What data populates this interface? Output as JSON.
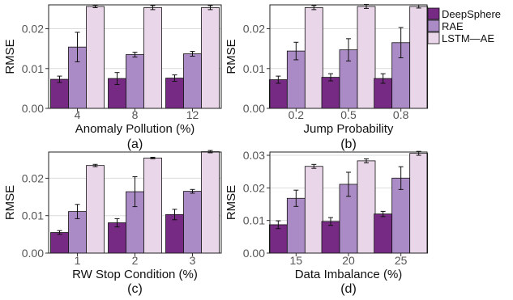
{
  "legend": {
    "entries": [
      {
        "name": "DeepSphere",
        "color": "#762a83"
      },
      {
        "name": "RAE",
        "color": "#ab8bc6"
      },
      {
        "name": "LSTM—AE",
        "color": "#e9d6e8"
      }
    ]
  },
  "chart_data": [
    {
      "type": "bar",
      "panel_label": "(a)",
      "xlabel": "Anomaly Pollution (%)",
      "ylabel": "RMSE",
      "categories": [
        "4",
        "8",
        "12"
      ],
      "ylim": [
        0,
        0.026
      ],
      "yticks": [
        "0.00",
        "0.01",
        "0.02"
      ],
      "ytick_values": [
        0,
        0.01,
        0.02
      ],
      "error_bars": true,
      "grid": true,
      "series": [
        {
          "name": "DeepSphere",
          "values": [
            0.0073,
            0.0075,
            0.0076
          ],
          "errors": [
            0.0008,
            0.0015,
            0.0008
          ]
        },
        {
          "name": "RAE",
          "values": [
            0.0154,
            0.0135,
            0.0137
          ],
          "errors": [
            0.0037,
            0.0006,
            0.0006
          ]
        },
        {
          "name": "LSTM—AE",
          "values": [
            0.0256,
            0.0253,
            0.0253
          ],
          "errors": [
            0.0003,
            0.0005,
            0.0005
          ]
        }
      ]
    },
    {
      "type": "bar",
      "panel_label": "(b)",
      "xlabel": "Jump Probability",
      "ylabel": "RMSE",
      "categories": [
        "0.2",
        "0.5",
        "0.8"
      ],
      "ylim": [
        0,
        0.026
      ],
      "yticks": [
        "0.00",
        "0.01",
        "0.02"
      ],
      "ytick_values": [
        0,
        0.01,
        0.02
      ],
      "error_bars": true,
      "grid": true,
      "series": [
        {
          "name": "DeepSphere",
          "values": [
            0.0072,
            0.0078,
            0.0075
          ],
          "errors": [
            0.0009,
            0.0009,
            0.0012
          ]
        },
        {
          "name": "RAE",
          "values": [
            0.0144,
            0.0147,
            0.0165
          ],
          "errors": [
            0.0022,
            0.0028,
            0.0038
          ]
        },
        {
          "name": "LSTM—AE",
          "values": [
            0.0253,
            0.0256,
            0.0256
          ],
          "errors": [
            0.0005,
            0.0005,
            0.0004
          ]
        }
      ]
    },
    {
      "type": "bar",
      "panel_label": "(c)",
      "xlabel": "RW Stop Condition (%)",
      "ylabel": "RMSE",
      "categories": [
        "1",
        "2",
        "3"
      ],
      "ylim": [
        0,
        0.027
      ],
      "yticks": [
        "0.00",
        "0.01",
        "0.02"
      ],
      "ytick_values": [
        0,
        0.01,
        0.02
      ],
      "error_bars": true,
      "grid": true,
      "series": [
        {
          "name": "DeepSphere",
          "values": [
            0.0055,
            0.0081,
            0.0103
          ],
          "errors": [
            0.0005,
            0.0011,
            0.0014
          ]
        },
        {
          "name": "RAE",
          "values": [
            0.0111,
            0.0164,
            0.0165
          ],
          "errors": [
            0.0019,
            0.004,
            0.0005
          ]
        },
        {
          "name": "LSTM—AE",
          "values": [
            0.0234,
            0.0254,
            0.0271
          ],
          "errors": [
            0.0003,
            0.0002,
            0.0003
          ]
        }
      ]
    },
    {
      "type": "bar",
      "panel_label": "(d)",
      "xlabel": "Data Imbalance (%)",
      "ylabel": "RMSE",
      "categories": [
        "15",
        "20",
        "25"
      ],
      "ylim": [
        0,
        0.031
      ],
      "yticks": [
        "0.00",
        "0.01",
        "0.02",
        "0.03"
      ],
      "ytick_values": [
        0,
        0.01,
        0.02,
        0.03
      ],
      "error_bars": true,
      "grid": true,
      "series": [
        {
          "name": "DeepSphere",
          "values": [
            0.0087,
            0.0097,
            0.012
          ],
          "errors": [
            0.0012,
            0.0012,
            0.0008
          ]
        },
        {
          "name": "RAE",
          "values": [
            0.0168,
            0.0211,
            0.023
          ],
          "errors": [
            0.0025,
            0.0037,
            0.0035
          ]
        },
        {
          "name": "LSTM—AE",
          "values": [
            0.0266,
            0.0283,
            0.0306
          ],
          "errors": [
            0.0006,
            0.0006,
            0.0006
          ]
        }
      ]
    }
  ]
}
